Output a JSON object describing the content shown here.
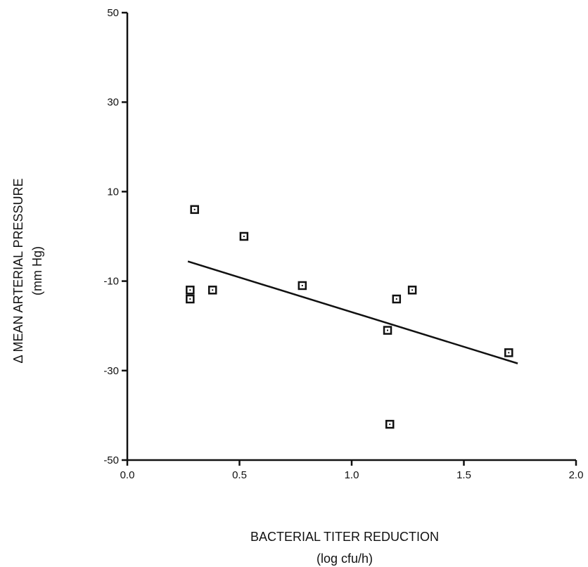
{
  "chart_data": {
    "type": "scatter",
    "xlabel": "BACTERIAL TITER REDUCTION",
    "xlabel_unit": "(log cfu/h)",
    "ylabel": "Δ MEAN ARTERIAL PRESSURE",
    "ylabel_unit": "(mm Hg)",
    "xlim": [
      0.0,
      2.0
    ],
    "ylim": [
      -50,
      50
    ],
    "x_ticks": [
      0.0,
      0.5,
      1.0,
      1.5,
      2.0
    ],
    "x_tick_labels": [
      "0.0",
      "0.5",
      "1.0",
      "1.5",
      "2.0"
    ],
    "y_ticks": [
      -50,
      -30,
      -10,
      10,
      30,
      50
    ],
    "y_tick_labels": [
      "-50",
      "-30",
      "-10",
      "10",
      "30",
      "50"
    ],
    "grid": false,
    "series": [
      {
        "marker": "open-square",
        "points": [
          {
            "x": 0.28,
            "y": -12
          },
          {
            "x": 0.28,
            "y": -14
          },
          {
            "x": 0.3,
            "y": 6
          },
          {
            "x": 0.38,
            "y": -12
          },
          {
            "x": 0.52,
            "y": 0
          },
          {
            "x": 0.78,
            "y": -11
          },
          {
            "x": 1.16,
            "y": -21
          },
          {
            "x": 1.17,
            "y": -42
          },
          {
            "x": 1.2,
            "y": -14
          },
          {
            "x": 1.27,
            "y": -12
          },
          {
            "x": 1.7,
            "y": -26
          }
        ]
      }
    ],
    "fit_line": {
      "x": [
        0.27,
        1.74
      ],
      "y": [
        -5.6,
        -28.4
      ]
    },
    "colors": {
      "axis": "#111111",
      "marker": "#111111",
      "line": "#111111"
    }
  }
}
